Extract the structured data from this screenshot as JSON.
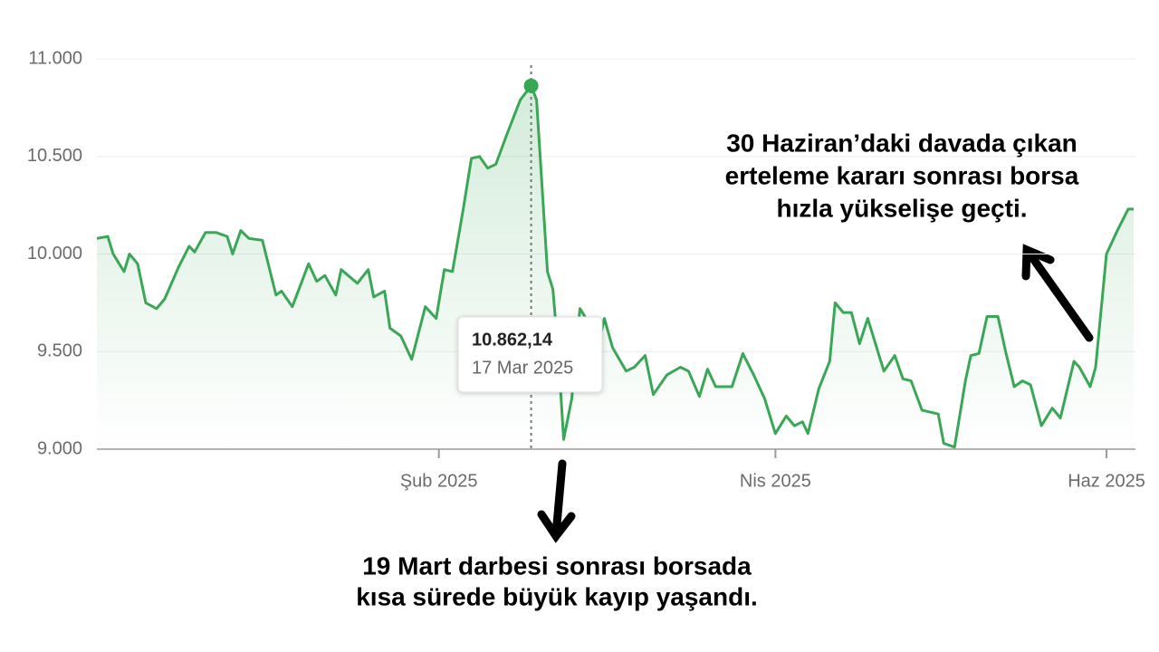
{
  "chart_data": {
    "type": "line",
    "x": [
      0,
      2,
      3,
      5,
      6,
      7.5,
      9,
      11,
      12.5,
      15,
      17,
      18,
      20,
      22,
      24,
      25,
      26.5,
      28,
      30.5,
      33,
      34,
      36,
      39,
      40.5,
      42,
      44,
      45,
      48,
      50,
      51,
      53,
      54,
      56,
      58,
      60.5,
      62.5,
      64,
      65.5,
      67.5,
      69,
      70.5,
      72,
      73.5,
      75.5,
      78,
      80,
      81,
      83,
      84,
      85,
      86,
      87.5,
      89,
      91,
      92.5,
      93.5,
      95,
      97.5,
      99,
      101,
      102.5,
      105,
      107.5,
      109,
      111,
      112.5,
      114,
      117,
      119,
      121,
      123,
      125,
      127,
      128.5,
      130,
      131,
      133,
      135,
      136,
      137.5,
      139,
      140.5,
      142,
      144,
      145,
      147,
      148.5,
      150,
      152,
      155,
      156,
      158,
      160,
      161,
      162.5,
      164,
      166,
      167.5,
      169,
      170.5,
      172,
      174,
      176,
      177.5,
      180,
      181,
      183,
      184,
      186,
      188,
      190,
      191
    ],
    "series": [
      {
        "color": "#3aa757",
        "values": [
          10080,
          10090,
          10000,
          9910,
          10000,
          9950,
          9750,
          9720,
          9770,
          9930,
          10040,
          10010,
          10110,
          10110,
          10090,
          10000,
          10120,
          10080,
          10070,
          9790,
          9810,
          9730,
          9950,
          9860,
          9890,
          9790,
          9920,
          9850,
          9920,
          9780,
          9810,
          9620,
          9580,
          9460,
          9730,
          9670,
          9920,
          9910,
          10230,
          10490,
          10500,
          10440,
          10460,
          10610,
          10790,
          10862.14,
          10790,
          9910,
          9820,
          9490,
          9050,
          9260,
          9720,
          9630,
          9550,
          9670,
          9520,
          9400,
          9420,
          9480,
          9280,
          9380,
          9420,
          9400,
          9270,
          9410,
          9320,
          9320,
          9490,
          9380,
          9260,
          9080,
          9170,
          9120,
          9140,
          9080,
          9310,
          9450,
          9750,
          9700,
          9700,
          9540,
          9670,
          9490,
          9400,
          9480,
          9360,
          9350,
          9200,
          9180,
          9030,
          9010,
          9350,
          9480,
          9490,
          9680,
          9680,
          9490,
          9320,
          9350,
          9330,
          9120,
          9210,
          9160,
          9450,
          9420,
          9320,
          9420,
          10000,
          10120,
          10230,
          10230
        ]
      }
    ],
    "xlim": [
      0,
      191
    ],
    "xticks": [
      {
        "value": 63,
        "label": "Şub 2025"
      },
      {
        "value": 125,
        "label": "Nis 2025"
      },
      {
        "value": 186,
        "label": "Haz 2025"
      }
    ],
    "ylim": [
      9000,
      11000
    ],
    "yticks": [
      {
        "value": 9000,
        "label": "9.000"
      },
      {
        "value": 9500,
        "label": "9.500"
      },
      {
        "value": 10000,
        "label": "10.000"
      },
      {
        "value": 10500,
        "label": "10.500"
      },
      {
        "value": 11000,
        "label": "11.000"
      }
    ],
    "grid": true,
    "tooltip": {
      "x": 80,
      "value": 10862.14,
      "value_label": "10.862,14",
      "date": "17 Mar 2025"
    },
    "annotations": [
      {
        "lines": [
          "30 Haziran’daki davada çıkan",
          "erteleme kararı sonrası borsa",
          "hızla yükselişe geçti."
        ]
      },
      {
        "lines": [
          "19 Mart darbesi sonrası borsada",
          "kısa sürede büyük kayıp yaşandı."
        ]
      }
    ]
  }
}
